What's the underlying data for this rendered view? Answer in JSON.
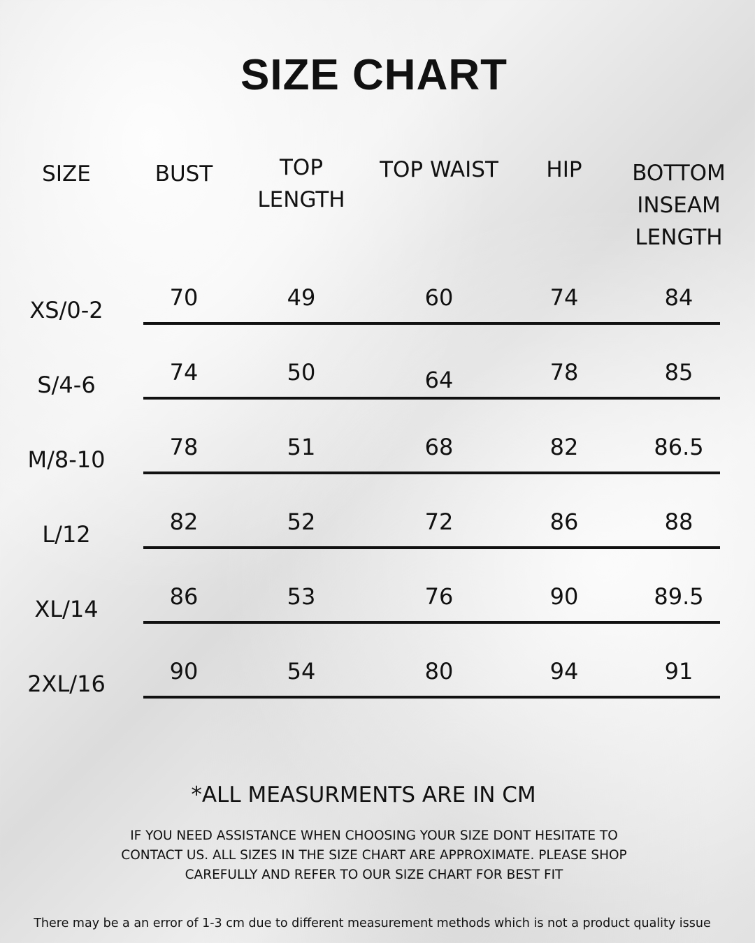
{
  "title": "SIZE CHART",
  "headers": [
    "SIZE",
    "BUST",
    "TOP\nLENGTH",
    "TOP WAIST",
    "HIP",
    "BOTTOM\nINSEAM\nLENGTH"
  ],
  "rows": [
    {
      "size": "XS/0-2",
      "values": [
        "70",
        "49",
        "60",
        "74",
        "84"
      ]
    },
    {
      "size": "S/4-6",
      "values": [
        "74",
        "50",
        "64",
        "78",
        "85"
      ]
    },
    {
      "size": "M/8-10",
      "values": [
        "78",
        "51",
        "68",
        "82",
        "86.5"
      ]
    },
    {
      "size": "L/12",
      "values": [
        "82",
        "52",
        "72",
        "86",
        "88"
      ]
    },
    {
      "size": "XL/14",
      "values": [
        "86",
        "53",
        "76",
        "90",
        "89.5"
      ]
    },
    {
      "size": "2XL/16",
      "values": [
        "90",
        "54",
        "80",
        "94",
        "91"
      ]
    }
  ],
  "units_note": "*ALL MEASURMENTS ARE IN CM",
  "assistance_text": "IF YOU NEED ASSISTANCE WHEN CHOOSING YOUR SIZE DONT HESITATE TO CONTACT US. ALL SIZES IN THE SIZE CHART ARE APPROXIMATE. PLEASE SHOP CAREFULLY AND REFER TO OUR SIZE CHART FOR BEST FIT",
  "disclaimer": "There may be a an error of 1-3 cm due to different measurement methods which is not a product quality issue"
}
